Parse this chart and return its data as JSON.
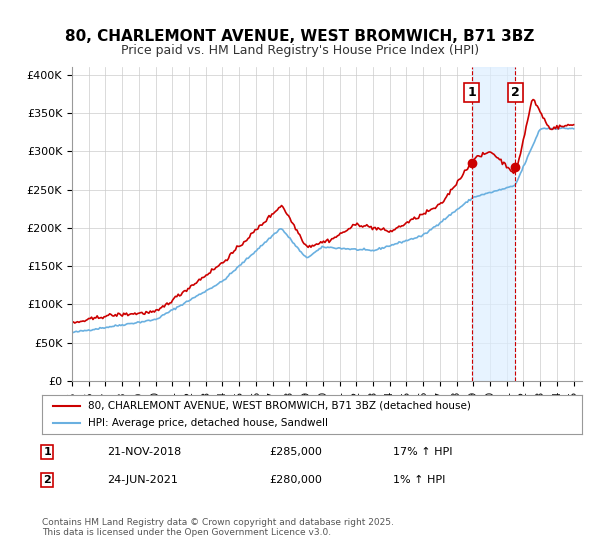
{
  "title": "80, CHARLEMONT AVENUE, WEST BROMWICH, B71 3BZ",
  "subtitle": "Price paid vs. HM Land Registry's House Price Index (HPI)",
  "xlabel": "",
  "ylabel": "",
  "ylim": [
    0,
    410000
  ],
  "yticks": [
    0,
    50000,
    100000,
    150000,
    200000,
    250000,
    300000,
    350000,
    400000
  ],
  "ytick_labels": [
    "£0",
    "£50K",
    "£100K",
    "£150K",
    "£200K",
    "£250K",
    "£300K",
    "£350K",
    "£400K"
  ],
  "hpi_color": "#6ab0e0",
  "price_color": "#cc0000",
  "marker1_color": "#cc0000",
  "marker2_color": "#cc0000",
  "vline_color": "#cc0000",
  "shade_color": "#ddeeff",
  "background_color": "#ffffff",
  "grid_color": "#cccccc",
  "legend_label_price": "80, CHARLEMONT AVENUE, WEST BROMWICH, B71 3BZ (detached house)",
  "legend_label_hpi": "HPI: Average price, detached house, Sandwell",
  "transaction1_date": "21-NOV-2018",
  "transaction1_price": "£285,000",
  "transaction1_hpi": "17% ↑ HPI",
  "transaction2_date": "24-JUN-2021",
  "transaction2_price": "£280,000",
  "transaction2_hpi": "1% ↑ HPI",
  "footnote": "Contains HM Land Registry data © Crown copyright and database right 2025.\nThis data is licensed under the Open Government Licence v3.0.",
  "xlim_start": 1995.0,
  "xlim_end": 2025.5,
  "marker1_x": 2018.9,
  "marker1_y": 285000,
  "marker2_x": 2021.5,
  "marker2_y": 280000,
  "vline1_x": 2018.9,
  "vline2_x": 2021.5
}
